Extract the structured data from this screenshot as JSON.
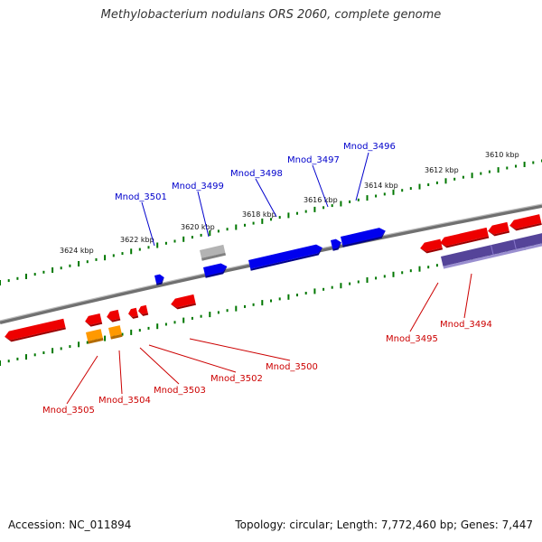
{
  "title": "Methylobacterium nodulans ORS 2060, complete genome",
  "footer": {
    "accession": "Accession: NC_011894",
    "summary": "Topology: circular; Length: 7,772,460 bp; Genes: 7,447"
  },
  "kbp_ticks": [
    "3624 kbp",
    "3622 kbp",
    "3620 kbp",
    "3618 kbp",
    "3616 kbp",
    "3614 kbp",
    "3612 kbp",
    "3610 kbp"
  ],
  "colors": {
    "forward_gene": "#0000ee",
    "reverse_gene": "#ee0000",
    "pseudo_gene": "#aaaaaa",
    "orange_gene": "#ff9900",
    "purple_gene": "#554499",
    "backbone": "#888888",
    "tick_dots": "#007700"
  },
  "forward_labels": [
    "Mnod_3501",
    "Mnod_3499",
    "Mnod_3498",
    "Mnod_3497",
    "Mnod_3496"
  ],
  "reverse_labels": [
    "Mnod_3505",
    "Mnod_3504",
    "Mnod_3503",
    "Mnod_3502",
    "Mnod_3500",
    "Mnod_3495",
    "Mnod_3494"
  ]
}
